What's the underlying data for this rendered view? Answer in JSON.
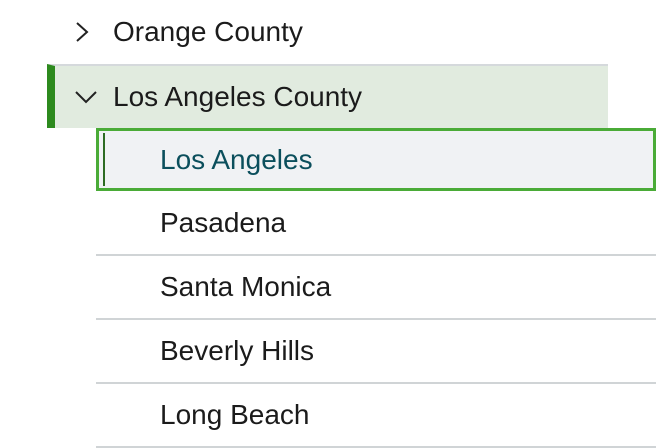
{
  "tree": {
    "counties": [
      {
        "label": "Orange County",
        "expanded": false
      },
      {
        "label": "Los Angeles County",
        "expanded": true,
        "cities": [
          "Los Angeles",
          "Pasadena",
          "Santa Monica",
          "Beverly Hills",
          "Long Beach"
        ],
        "selected": "Los Angeles"
      }
    ]
  },
  "colors": {
    "accent": "#2d8a1e",
    "focus": "#4aab37",
    "selected_text": "#0b4f5c"
  }
}
